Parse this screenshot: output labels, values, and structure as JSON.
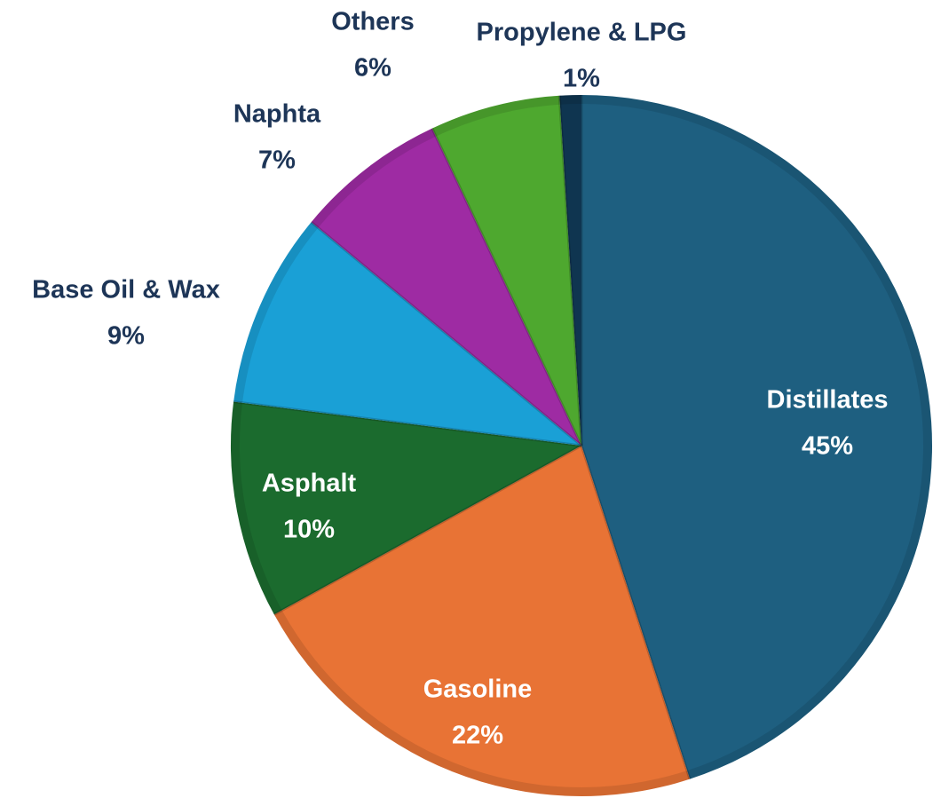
{
  "chart_data": {
    "type": "pie",
    "title": "",
    "slices": [
      {
        "label": "Distillates",
        "value": 45,
        "display": "45%",
        "color": "#1e5f80",
        "label_inside": true
      },
      {
        "label": "Gasoline",
        "value": 22,
        "display": "22%",
        "color": "#e87335",
        "label_inside": true
      },
      {
        "label": "Asphalt",
        "value": 10,
        "display": "10%",
        "color": "#1b6b2e",
        "label_inside": true
      },
      {
        "label": "Base Oil & Wax",
        "value": 9,
        "display": "9%",
        "color": "#1aa0d6",
        "label_inside": false
      },
      {
        "label": "Naphta",
        "value": 7,
        "display": "7%",
        "color": "#9e2ba3",
        "label_inside": false
      },
      {
        "label": "Others",
        "value": 6,
        "display": "6%",
        "color": "#4ea82f",
        "label_inside": false
      },
      {
        "label": "Propylene & LPG",
        "value": 1,
        "display": "1%",
        "color": "#0f3550",
        "label_inside": false
      }
    ],
    "label_colors": {
      "inside": "#ffffff",
      "outside": "#1d3557"
    }
  }
}
